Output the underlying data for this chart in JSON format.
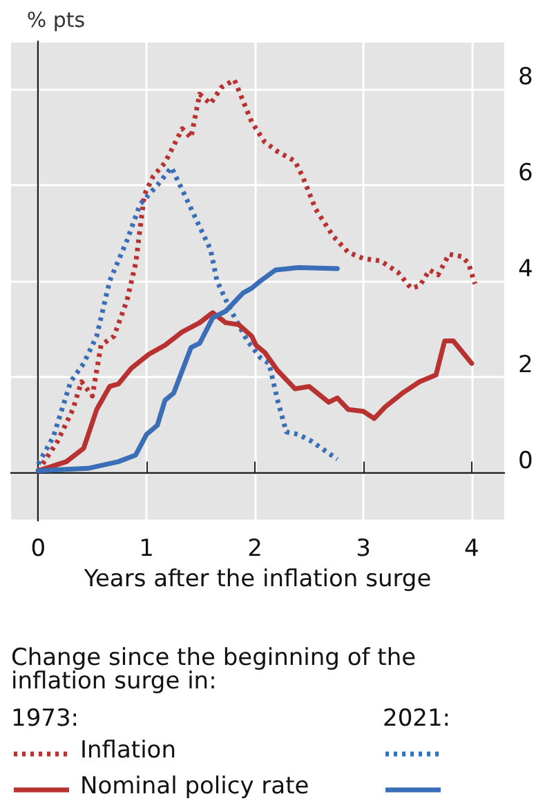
{
  "chart_data": {
    "type": "line",
    "xlabel": "Years after the inflation surge",
    "ylabel": "% pts",
    "legend_title": "Change since the beginning of the inflation surge in:",
    "annotations": [
      "1973:",
      "2021:"
    ],
    "xlim": [
      -0.25,
      4.3
    ],
    "ylim": [
      -1,
      9
    ],
    "xticks": [
      0,
      1,
      2,
      3,
      4
    ],
    "yticks": [
      0,
      2,
      4,
      6,
      8
    ],
    "grid": true,
    "legend": "bottom",
    "marker": "none",
    "series": [
      {
        "name": "Inflation",
        "color": "#b83232",
        "line_style": "dotted",
        "x": [
          0,
          0.18,
          0.32,
          0.4,
          0.5,
          0.58,
          0.7,
          0.82,
          0.9,
          0.98,
          1.06,
          1.17,
          1.33,
          1.41,
          1.49,
          1.59,
          1.69,
          1.81,
          1.97,
          2.09,
          2.21,
          2.37,
          2.44,
          2.56,
          2.72,
          2.86,
          3.0,
          3.16,
          3.32,
          3.44,
          3.52,
          3.61,
          3.69,
          3.79,
          3.91,
          3.97,
          4.03
        ],
        "values": [
          0.04,
          0.66,
          1.32,
          1.9,
          1.6,
          2.66,
          2.85,
          3.6,
          4.37,
          5.8,
          6.18,
          6.47,
          7.18,
          6.99,
          7.9,
          7.7,
          8.04,
          8.2,
          7.32,
          6.9,
          6.7,
          6.5,
          6.18,
          5.5,
          4.94,
          4.6,
          4.47,
          4.42,
          4.18,
          3.85,
          3.9,
          4.23,
          4.13,
          4.56,
          4.51,
          4.37,
          3.94
        ]
      },
      {
        "color": "#3a6fb7",
        "line_style": "dotted",
        "x": [
          0,
          0.14,
          0.3,
          0.42,
          0.54,
          0.66,
          0.82,
          0.94,
          1.1,
          1.23,
          1.33,
          1.49,
          1.59,
          1.65,
          1.77,
          1.93,
          2.05,
          2.13,
          2.21,
          2.29,
          2.4,
          2.52,
          2.64,
          2.76
        ],
        "values": [
          0.18,
          0.75,
          1.9,
          2.28,
          2.85,
          4.0,
          4.85,
          5.6,
          6.0,
          6.37,
          5.9,
          5.13,
          4.66,
          4.0,
          3.42,
          2.75,
          2.4,
          2.28,
          1.5,
          0.85,
          0.8,
          0.66,
          0.47,
          0.28
        ]
      },
      {
        "name": "Nominal policy rate",
        "color": "#b83232",
        "line_style": "solid",
        "x": [
          0,
          0.26,
          0.42,
          0.54,
          0.66,
          0.74,
          0.86,
          1.02,
          1.17,
          1.33,
          1.49,
          1.61,
          1.73,
          1.85,
          1.97,
          2.01,
          2.09,
          2.21,
          2.37,
          2.5,
          2.68,
          2.76,
          2.86,
          3.0,
          3.1,
          3.2,
          3.36,
          3.52,
          3.67,
          3.75,
          3.83,
          4.0
        ],
        "values": [
          0.04,
          0.23,
          0.51,
          1.32,
          1.8,
          1.85,
          2.18,
          2.47,
          2.66,
          2.94,
          3.13,
          3.34,
          3.13,
          3.09,
          2.85,
          2.66,
          2.51,
          2.13,
          1.75,
          1.8,
          1.47,
          1.56,
          1.32,
          1.28,
          1.13,
          1.37,
          1.66,
          1.9,
          2.04,
          2.75,
          2.75,
          2.28
        ]
      },
      {
        "color": "#3a6fb7",
        "line_style": "solid",
        "x": [
          0,
          0.46,
          0.74,
          0.9,
          1.0,
          1.1,
          1.17,
          1.25,
          1.41,
          1.49,
          1.61,
          1.73,
          1.89,
          1.97,
          2.05,
          2.19,
          2.4,
          2.76
        ],
        "values": [
          0.04,
          0.09,
          0.23,
          0.37,
          0.8,
          0.99,
          1.51,
          1.66,
          2.61,
          2.7,
          3.23,
          3.37,
          3.75,
          3.85,
          4.0,
          4.23,
          4.28,
          4.26
        ]
      }
    ]
  }
}
